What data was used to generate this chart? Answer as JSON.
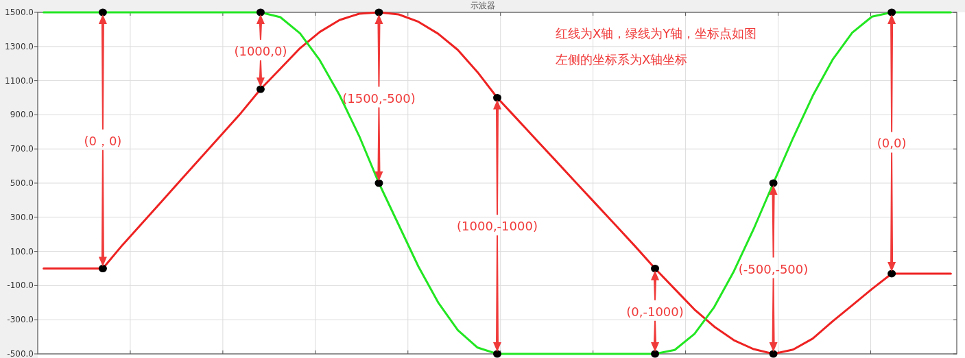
{
  "chart_data": {
    "type": "line",
    "title": "示波器",
    "categories": [
      null,
      null,
      null,
      null,
      null,
      null,
      null,
      null,
      null,
      null,
      null,
      null,
      null,
      null,
      null,
      null,
      null,
      null,
      null,
      null,
      null,
      null,
      null,
      null,
      null,
      null,
      null,
      null,
      null,
      null,
      null,
      null,
      null,
      null,
      null,
      null,
      null,
      null,
      null,
      null,
      null,
      null,
      null,
      null,
      null,
      null,
      null
    ],
    "series": [
      {
        "type": "line",
        "color": "#ee2222",
        "values": [
          0,
          0,
          0,
          0,
          138,
          266,
          395,
          524,
          653,
          781,
          910,
          1050,
          1170,
          1290,
          1385,
          1455,
          1492,
          1500,
          1488,
          1445,
          1375,
          1280,
          1150,
          1000,
          876,
          751,
          627,
          502,
          378,
          254,
          129,
          0,
          -120,
          -240,
          -340,
          -420,
          -472,
          -500,
          -475,
          -410,
          -310,
          -215,
          -120,
          -30,
          -30,
          -30,
          -30
        ]
      },
      {
        "type": "line",
        "color": "#22e622",
        "values": [
          1500,
          1500,
          1500,
          1500,
          1500,
          1500,
          1500,
          1500,
          1500,
          1500,
          1500,
          1500,
          1472,
          1377,
          1220,
          1016,
          776,
          500,
          256,
          12,
          -198,
          -361,
          -463,
          -500,
          -500,
          -500,
          -500,
          -500,
          -500,
          -500,
          -500,
          -500,
          -477,
          -383,
          -226,
          -16,
          231,
          500,
          764,
          1012,
          1222,
          1381,
          1475,
          1500,
          1500,
          1500,
          1500
        ]
      },
      {
        "type": "scatter",
        "color": "#000000",
        "values": [
          null,
          null,
          null,
          1500,
          null,
          null,
          null,
          null,
          null,
          null,
          null,
          1500,
          null,
          null,
          null,
          null,
          null,
          1500,
          null,
          null,
          null,
          null,
          null,
          1000,
          null,
          null,
          null,
          null,
          null,
          null,
          null,
          0,
          null,
          null,
          null,
          null,
          null,
          500,
          null,
          null,
          null,
          null,
          null,
          1500,
          null,
          null,
          null
        ]
      },
      {
        "type": "scatter",
        "color": "#000000",
        "values": [
          null,
          null,
          null,
          0,
          null,
          null,
          null,
          null,
          null,
          null,
          null,
          1050,
          null,
          null,
          null,
          null,
          null,
          500,
          null,
          null,
          null,
          null,
          null,
          -500,
          null,
          null,
          null,
          null,
          null,
          null,
          null,
          -500,
          null,
          null,
          null,
          null,
          null,
          -500,
          null,
          null,
          null,
          null,
          null,
          -30,
          null,
          null,
          null
        ]
      }
    ],
    "ylim": [
      -500,
      1500
    ],
    "yticks": [
      {
        "value": 1500,
        "label": "1500.0"
      },
      {
        "value": 1300,
        "label": "1300.0"
      },
      {
        "value": 1100,
        "label": "1100.0"
      },
      {
        "value": 900,
        "label": "900.0"
      },
      {
        "value": 700,
        "label": "700.0"
      },
      {
        "value": 500,
        "label": "500.0"
      },
      {
        "value": 300,
        "label": "300.0"
      },
      {
        "value": 100,
        "label": "100.0"
      },
      {
        "value": -100,
        "label": "-100.0"
      },
      {
        "value": -300,
        "label": "-300.0"
      },
      {
        "value": -500,
        "label": "-500.0"
      }
    ],
    "grid": true,
    "annotations": [
      "红线为X轴，绿线为Y轴，坐标点如图",
      "左侧的坐标系为X轴坐标",
      "(0，0)",
      "(1000,0)",
      "(1500,-500)",
      "(1000,-1000)",
      "(0,-1000)",
      "(-500,-500)",
      "(0,0)"
    ]
  }
}
